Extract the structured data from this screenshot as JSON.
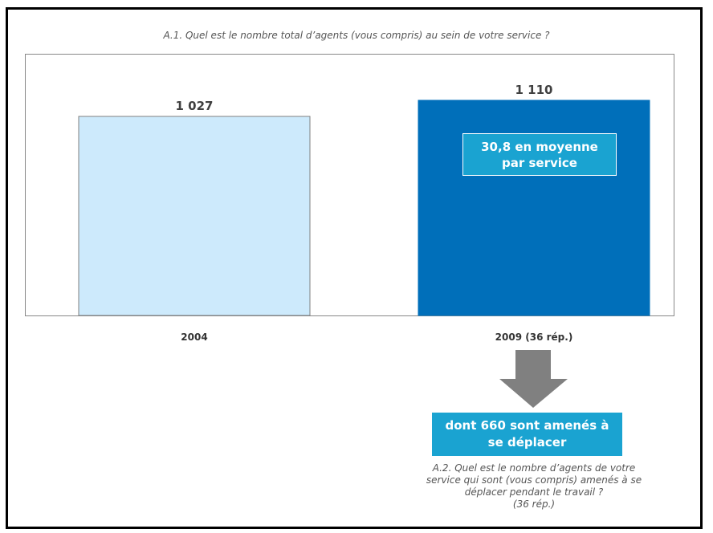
{
  "question": "A.1. Quel est le nombre total d’agents (vous compris) au sein de votre service ?",
  "colors": {
    "bar_2004": "#cdeafc",
    "bar_2009": "#006fba",
    "accent": "#1aa3d1",
    "arrow": "#808080"
  },
  "callout": {
    "line1": "30,8 en moyenne",
    "line2": "par service"
  },
  "highlight": {
    "line1": "dont 660 sont amenés à",
    "line2": "se déplacer"
  },
  "sub_question": {
    "line1": "A.2. Quel est le nombre d’agents de votre",
    "line2": "service qui sont (vous compris) amenés à se",
    "line3": "déplacer pendant le travail ?",
    "line4": "(36 rép.)"
  },
  "chart_data": {
    "type": "bar",
    "categories": [
      "2004",
      "2009 (36 rép.)"
    ],
    "values": [
      1027,
      1110
    ],
    "value_labels": [
      "1 027",
      "1 110"
    ],
    "ylim": [
      0,
      1350
    ],
    "grid": false,
    "legend": "none"
  }
}
